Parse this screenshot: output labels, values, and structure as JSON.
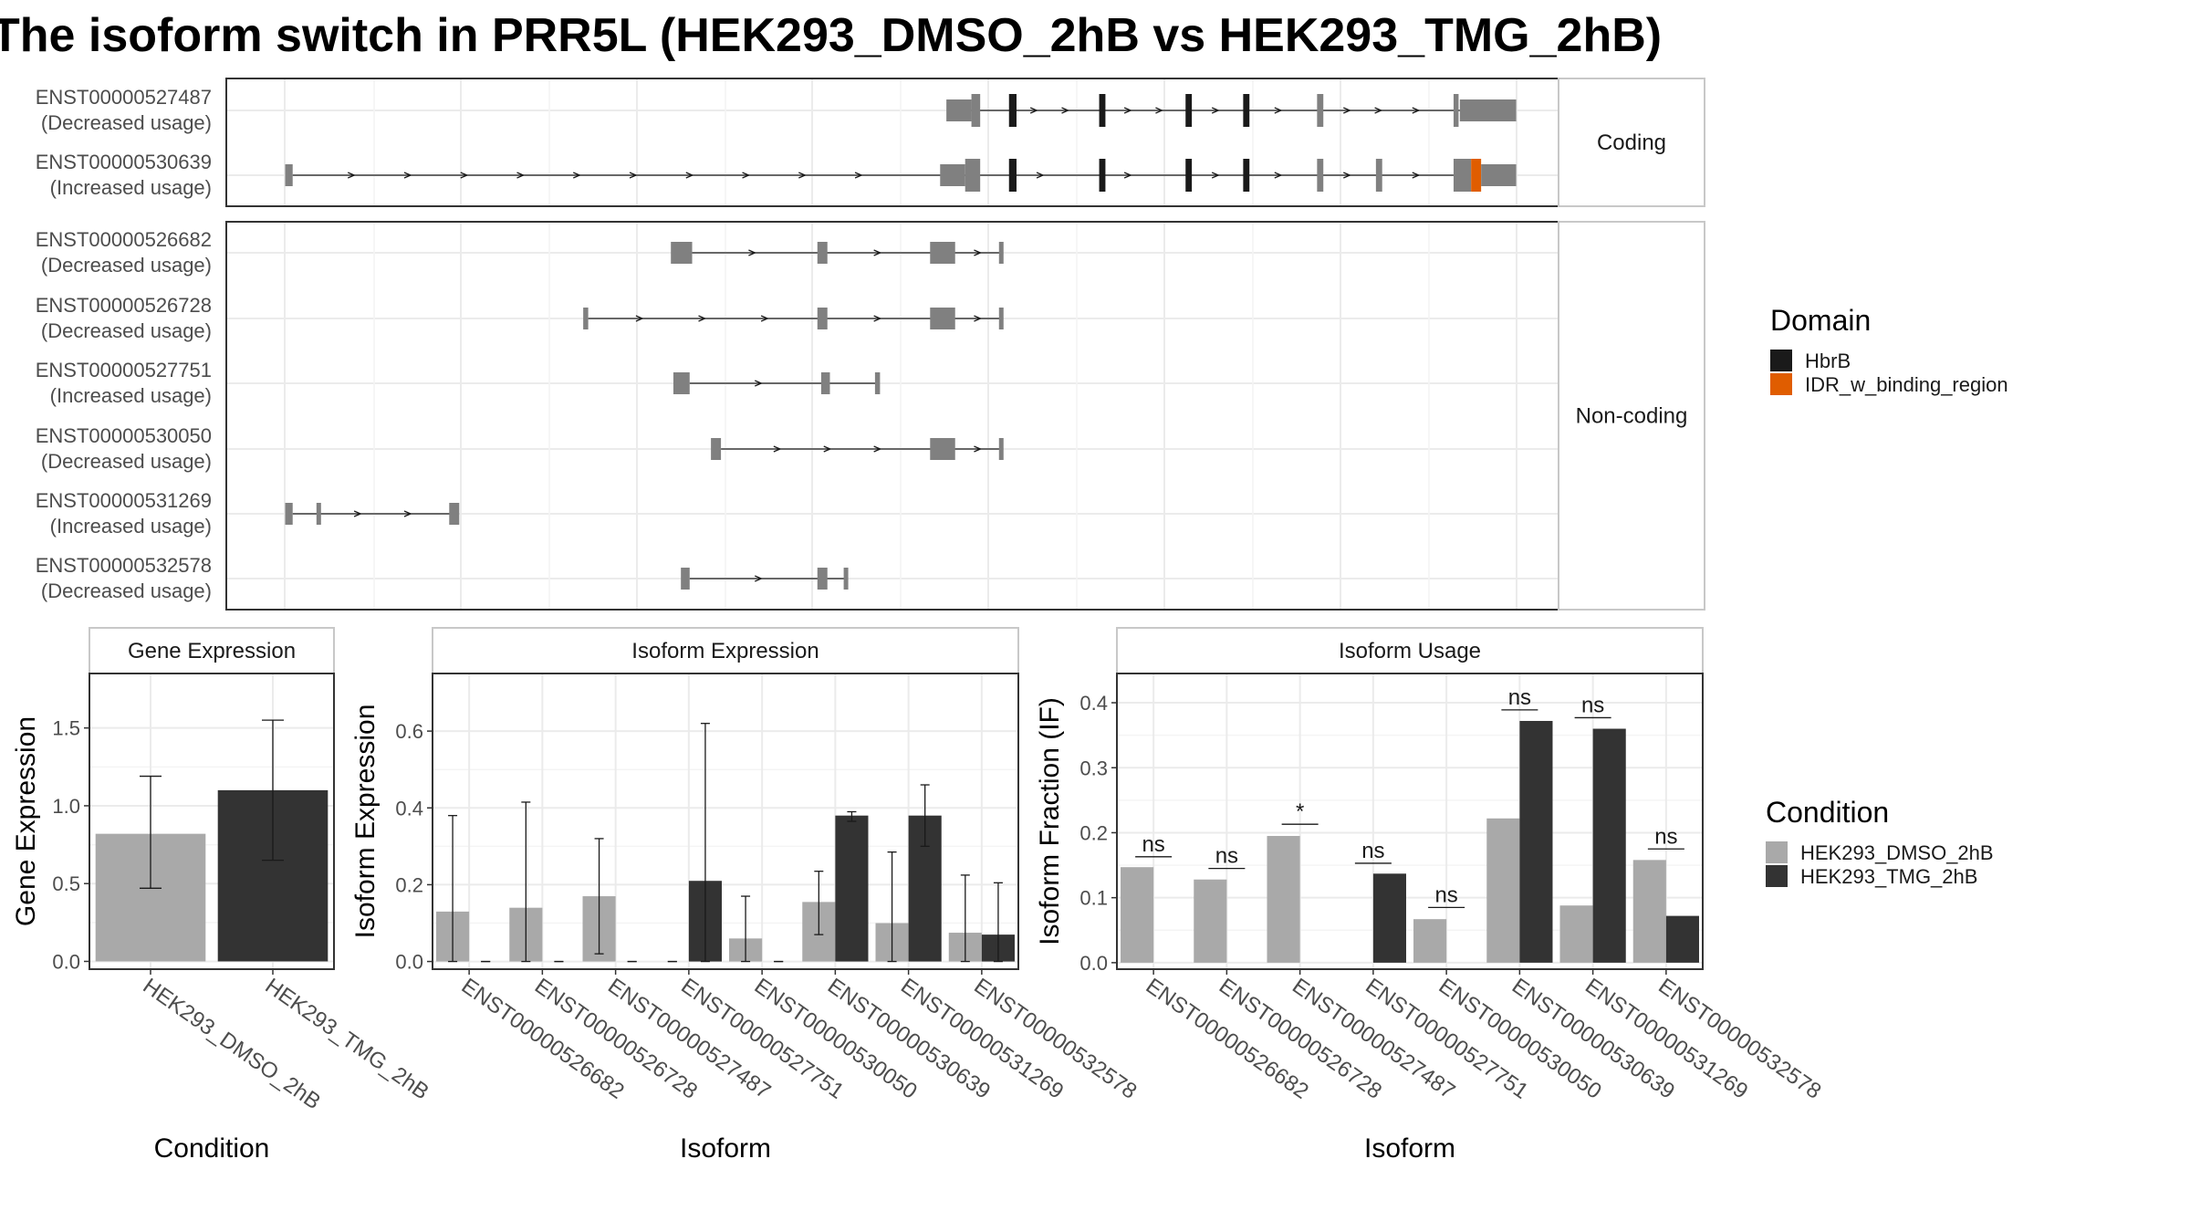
{
  "title": "The isoform switch in PRR5L (HEK293_DMSO_2hB vs HEK293_TMG_2hB)",
  "colors": {
    "exon": "#808080",
    "hbrb": "#1a1a1a",
    "idr": "#e05d00",
    "dmso": "#a9a9a9",
    "tmg": "#333333",
    "strip_bg": "#ffffff",
    "grid": "#ebebeb"
  },
  "structure": {
    "x_range": [
      0,
      100
    ],
    "facets": [
      {
        "label": "Coding",
        "transcripts": [
          {
            "id": "ENST00000527487",
            "usage": "(Decreased usage)",
            "exons": [
              [
                57.5,
                59
              ],
              [
                58.5,
                59.5
              ]
            ],
            "intron": [
              59.5,
              98.5
            ],
            "exon_list": [
              [
                57.5,
                59.5,
                "utr"
              ],
              [
                59.5,
                60.2,
                "cds"
              ],
              [
                62.5,
                63.1,
                "hbrb"
              ],
              [
                69.7,
                70.2,
                "hbrb"
              ],
              [
                76.6,
                77.1,
                "hbrb"
              ],
              [
                81.2,
                81.7,
                "hbrb"
              ],
              [
                87.1,
                87.6,
                "cds"
              ],
              [
                98,
                98.4,
                "cds"
              ],
              [
                98.5,
                103,
                "utr"
              ]
            ],
            "arrows": [
              64.5,
              67,
              72,
              74.5,
              79,
              84,
              89.5,
              92,
              95
            ]
          },
          {
            "id": "ENST00000530639",
            "usage": "(Increased usage)",
            "exon_list": [
              [
                4.7,
                5.3,
                "utr"
              ],
              [
                57,
                59,
                "utr"
              ],
              [
                59,
                60.2,
                "cds"
              ],
              [
                62.5,
                63.1,
                "hbrb"
              ],
              [
                69.7,
                70.2,
                "hbrb"
              ],
              [
                76.6,
                77.1,
                "hbrb"
              ],
              [
                81.2,
                81.7,
                "hbrb"
              ],
              [
                87.1,
                87.6,
                "cds"
              ],
              [
                91.8,
                92.3,
                "cds"
              ],
              [
                98,
                99.4,
                "cds"
              ],
              [
                99.4,
                100.2,
                "idr"
              ],
              [
                100.2,
                103,
                "utr"
              ]
            ],
            "intron": [
              5.3,
              98
            ],
            "arrows": [
              10,
              14.5,
              19,
              23.5,
              28,
              32.5,
              37,
              41.5,
              46,
              50.5,
              65,
              72,
              79,
              84,
              89.5,
              95
            ]
          }
        ]
      },
      {
        "label": "Non-coding",
        "transcripts": [
          {
            "id": "ENST00000526682",
            "usage": "(Decreased usage)",
            "exon_list": [
              [
                35.5,
                37.2,
                "utr"
              ],
              [
                47.2,
                48,
                "utr"
              ],
              [
                56.2,
                58.2,
                "utr"
              ],
              [
                61.7,
                62,
                "utr"
              ]
            ],
            "intron": [
              37.2,
              61.8
            ],
            "arrows": [
              42,
              52,
              60
            ]
          },
          {
            "id": "ENST00000526728",
            "usage": "(Decreased usage)",
            "exon_list": [
              [
                28.5,
                28.9,
                "utr"
              ],
              [
                47.2,
                48,
                "utr"
              ],
              [
                56.2,
                58.2,
                "utr"
              ],
              [
                61.7,
                62,
                "utr"
              ]
            ],
            "intron": [
              28.9,
              61.8
            ],
            "arrows": [
              33,
              38,
              43,
              52,
              60
            ]
          },
          {
            "id": "ENST00000527751",
            "usage": "(Increased usage)",
            "exon_list": [
              [
                35.7,
                37,
                "utr"
              ],
              [
                47.5,
                48.2,
                "utr"
              ],
              [
                51.8,
                52.2,
                "utr"
              ]
            ],
            "intron": [
              37,
              52
            ],
            "arrows": [
              42.5
            ]
          },
          {
            "id": "ENST00000530050",
            "usage": "(Decreased usage)",
            "exon_list": [
              [
                38.7,
                39.5,
                "utr"
              ],
              [
                56.2,
                58.2,
                "utr"
              ],
              [
                61.7,
                62,
                "utr"
              ]
            ],
            "intron": [
              39.5,
              61.8
            ],
            "arrows": [
              44,
              48,
              52,
              60
            ]
          },
          {
            "id": "ENST00000531269",
            "usage": "(Increased usage)",
            "exon_list": [
              [
                4.7,
                5.3,
                "utr"
              ],
              [
                7.2,
                7.5,
                "utr"
              ],
              [
                17.8,
                18.6,
                "utr"
              ]
            ],
            "intron": [
              5.3,
              18
            ],
            "arrows": [
              10.5,
              14.5
            ]
          },
          {
            "id": "ENST00000532578",
            "usage": "(Decreased usage)",
            "exon_list": [
              [
                36.3,
                37,
                "utr"
              ],
              [
                47.2,
                48,
                "utr"
              ],
              [
                49.3,
                49.6,
                "utr"
              ]
            ],
            "intron": [
              37,
              49.4
            ],
            "arrows": [
              42.5
            ]
          }
        ]
      }
    ]
  },
  "legend_domain": {
    "title": "Domain",
    "items": [
      {
        "label": "HbrB",
        "color": "#1a1a1a"
      },
      {
        "label": "IDR_w_binding_region",
        "color": "#e05d00"
      }
    ]
  },
  "legend_condition": {
    "title": "Condition",
    "items": [
      {
        "label": "HEK293_DMSO_2hB",
        "color": "#a9a9a9"
      },
      {
        "label": "HEK293_TMG_2hB",
        "color": "#333333"
      }
    ]
  },
  "chart_data": [
    {
      "type": "bar",
      "title": "Gene Expression",
      "xlabel": "Condition",
      "ylabel": "Gene Expression",
      "ylim": [
        -0.05,
        1.85
      ],
      "yticks": [
        0.0,
        0.5,
        1.0,
        1.5
      ],
      "ytick_labels": [
        "0.0",
        "0.5",
        "1.0",
        "1.5"
      ],
      "categories": [
        "HEK293_DMSO_2hB",
        "HEK293_TMG_2hB"
      ],
      "values": [
        0.82,
        1.1
      ],
      "err_low": [
        0.47,
        0.65
      ],
      "err_high": [
        1.19,
        1.55
      ],
      "colors": [
        "#a9a9a9",
        "#333333"
      ]
    },
    {
      "type": "bar",
      "title": "Isoform Expression",
      "xlabel": "Isoform",
      "ylabel": "Isoform Expression",
      "ylim": [
        -0.02,
        0.75
      ],
      "yticks": [
        0.0,
        0.2,
        0.4,
        0.6
      ],
      "ytick_labels": [
        "0.0",
        "0.2",
        "0.4",
        "0.6"
      ],
      "categories": [
        "ENST00000526682",
        "ENST00000526728",
        "ENST00000527487",
        "ENST00000527751",
        "ENST00000530050",
        "ENST00000530639",
        "ENST00000531269",
        "ENST00000532578"
      ],
      "series": [
        {
          "name": "HEK293_DMSO_2hB",
          "color": "#a9a9a9",
          "values": [
            0.13,
            0.14,
            0.17,
            0.0,
            0.06,
            0.155,
            0.1,
            0.075
          ],
          "err_low": [
            0.0,
            0.0,
            0.02,
            0.0,
            0.0,
            0.07,
            0.0,
            0.0
          ],
          "err_high": [
            0.38,
            0.415,
            0.32,
            0.0,
            0.17,
            0.235,
            0.285,
            0.225
          ]
        },
        {
          "name": "HEK293_TMG_2hB",
          "color": "#333333",
          "values": [
            0.0,
            0.0,
            0.0,
            0.21,
            0.0,
            0.38,
            0.38,
            0.07
          ],
          "err_low": [
            0.0,
            0.0,
            0.0,
            0.0,
            0.0,
            0.365,
            0.3,
            0.0
          ],
          "err_high": [
            0.0,
            0.0,
            0.0,
            0.62,
            0.0,
            0.39,
            0.46,
            0.205
          ]
        }
      ]
    },
    {
      "type": "bar",
      "title": "Isoform Usage",
      "xlabel": "Isoform",
      "ylabel": "Isoform Fraction (IF)",
      "ylim": [
        -0.01,
        0.445
      ],
      "yticks": [
        0.0,
        0.1,
        0.2,
        0.3,
        0.4
      ],
      "ytick_labels": [
        "0.0",
        "0.1",
        "0.2",
        "0.3",
        "0.4"
      ],
      "categories": [
        "ENST00000526682",
        "ENST00000526728",
        "ENST00000527487",
        "ENST00000527751",
        "ENST00000530050",
        "ENST00000530639",
        "ENST00000531269",
        "ENST00000532578"
      ],
      "series": [
        {
          "name": "HEK293_DMSO_2hB",
          "color": "#a9a9a9",
          "values": [
            0.147,
            0.128,
            0.195,
            0.0,
            0.067,
            0.222,
            0.088,
            0.158
          ]
        },
        {
          "name": "HEK293_TMG_2hB",
          "color": "#333333",
          "values": [
            0.0,
            0.0,
            0.0,
            0.137,
            0.0,
            0.372,
            0.36,
            0.072
          ]
        }
      ],
      "significance": [
        "ns",
        "ns",
        "*",
        "ns",
        "ns",
        "ns",
        "ns",
        "ns"
      ],
      "sig_y": [
        0.163,
        0.145,
        0.213,
        0.153,
        0.085,
        0.389,
        0.377,
        0.175
      ]
    }
  ]
}
